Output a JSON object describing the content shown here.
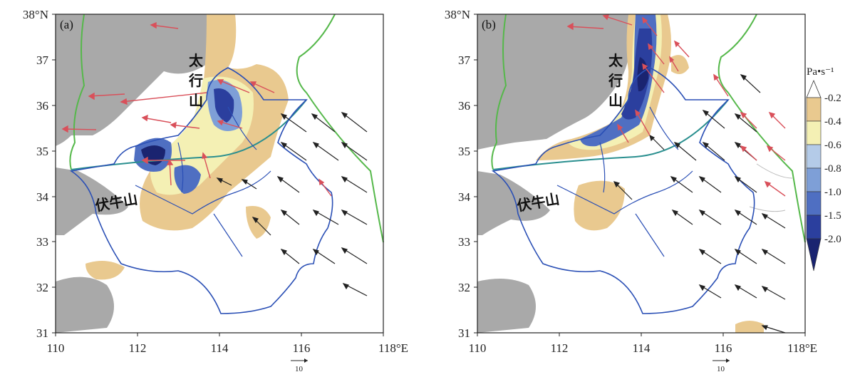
{
  "panels": [
    {
      "id": "a",
      "tag": "(a)",
      "x_ticks": [
        "110",
        "112",
        "114",
        "116",
        "118°E"
      ],
      "y_ticks": [
        "38°N",
        "37",
        "36",
        "35",
        "34",
        "33",
        "32",
        "31"
      ],
      "mountains": [
        "太",
        "行",
        "山",
        "伏牛山"
      ],
      "scale_value": "10"
    },
    {
      "id": "b",
      "tag": "(b)",
      "x_ticks": [
        "110",
        "112",
        "114",
        "116",
        "118°E"
      ],
      "y_ticks": [
        "38°N",
        "37",
        "36",
        "35",
        "34",
        "33",
        "32",
        "31"
      ],
      "mountains": [
        "太",
        "行",
        "山",
        "伏牛山"
      ],
      "scale_value": "10"
    }
  ],
  "colorbar": {
    "unit": "Pa•s⁻¹",
    "labels": [
      "-0.2",
      "-0.4",
      "-0.6",
      "-0.8",
      "-1.0",
      "-1.5",
      "-2.0"
    ],
    "colors": [
      "#ffffff",
      "#e9c98f",
      "#f4f0b4",
      "#b4cbe8",
      "#7e9fd7",
      "#4f6fc2",
      "#2b3f9e",
      "#1a2470"
    ]
  },
  "colors": {
    "terrain_gray": "#a9a9a9",
    "province_blue": "#2a4fb5",
    "river_green": "#55b84a",
    "wind_black": "#222222",
    "wind_red": "#d9505a"
  }
}
